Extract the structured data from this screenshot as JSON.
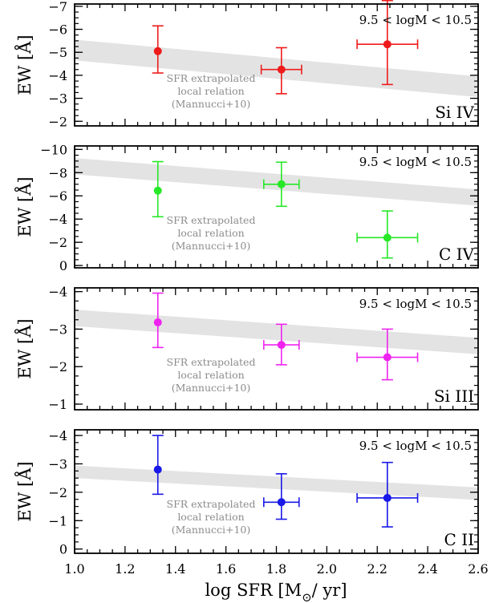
{
  "chart_data": {
    "type": "scatter",
    "xlabel": "log SFR [M",
    "xlabel_sub": "⊙",
    "xlabel_tail": "/ yr]",
    "xlim": [
      1.0,
      2.6
    ],
    "xticks": [
      1.0,
      1.2,
      1.4,
      1.6,
      1.8,
      2.0,
      2.2,
      2.4,
      2.6
    ],
    "x_tick_labels": [
      "1.0",
      "1.2",
      "1.4",
      "1.6",
      "1.8",
      "2.0",
      "2.2",
      "2.4",
      "2.6"
    ],
    "band_text": [
      "SFR extrapolated",
      "local relation",
      "(Mannucci+10)"
    ],
    "mass_label": "9.5 < logM < 10.5",
    "ylabel_prefix": "EW [",
    "ylabel_unit": "Å",
    "ylabel_suffix": "]",
    "grid": false,
    "colors": {
      "band": "#e3e3e3",
      "band_text": "#8c8c8c"
    },
    "panels": [
      {
        "ion": "Si IV",
        "color": "#ee1b1b",
        "ylim": [
          -1.8,
          -7.1
        ],
        "yticks": [
          -7,
          -6,
          -5,
          -4,
          -3,
          -2
        ],
        "y_tick_labels": [
          "−7",
          "−6",
          "−5",
          "−4",
          "−3",
          "−2"
        ],
        "band": {
          "x": [
            1.0,
            2.6
          ],
          "center": [
            -5.1,
            -3.5
          ],
          "halfwidth": 0.45
        },
        "points": [
          {
            "x": 1.33,
            "y": -5.05,
            "xerr": 0.0,
            "yerr_low": 0.95,
            "yerr_high": 1.1
          },
          {
            "x": 1.82,
            "y": -4.25,
            "xerr": 0.08,
            "yerr_low": 1.05,
            "yerr_high": 0.95
          },
          {
            "x": 2.24,
            "y": -5.35,
            "xerr": 0.12,
            "yerr_low": 1.75,
            "yerr_high": 1.9
          }
        ]
      },
      {
        "ion": "C IV",
        "color": "#27e827",
        "ylim": [
          0.2,
          -10.3
        ],
        "yticks": [
          -10,
          -8,
          -6,
          -4,
          -2,
          0
        ],
        "y_tick_labels": [
          "−10",
          "−8",
          "−6",
          "−4",
          "−2",
          "0"
        ],
        "band": {
          "x": [
            1.0,
            2.6
          ],
          "center": [
            -8.55,
            -5.85
          ],
          "halfwidth": 0.7
        },
        "points": [
          {
            "x": 1.33,
            "y": -6.45,
            "xerr": 0.0,
            "yerr_low": 2.25,
            "yerr_high": 2.5
          },
          {
            "x": 1.82,
            "y": -7.0,
            "xerr": 0.07,
            "yerr_low": 1.9,
            "yerr_high": 1.9
          },
          {
            "x": 2.24,
            "y": -2.4,
            "xerr": 0.12,
            "yerr_low": 1.75,
            "yerr_high": 2.3
          }
        ]
      },
      {
        "ion": "Si III",
        "color": "#ef23ef",
        "ylim": [
          -0.85,
          -4.1
        ],
        "yticks": [
          -4,
          -3,
          -2,
          -1
        ],
        "y_tick_labels": [
          "−4",
          "−3",
          "−2",
          "−1"
        ],
        "band": {
          "x": [
            1.0,
            2.6
          ],
          "center": [
            -3.3,
            -2.55
          ],
          "halfwidth": 0.22
        },
        "points": [
          {
            "x": 1.33,
            "y": -3.18,
            "xerr": 0.0,
            "yerr_low": 0.67,
            "yerr_high": 0.78
          },
          {
            "x": 1.82,
            "y": -2.58,
            "xerr": 0.07,
            "yerr_low": 0.53,
            "yerr_high": 0.55
          },
          {
            "x": 2.24,
            "y": -2.25,
            "xerr": 0.12,
            "yerr_low": 0.6,
            "yerr_high": 0.75
          }
        ]
      },
      {
        "ion": "C II",
        "color": "#1818e8",
        "ylim": [
          0.15,
          -4.2
        ],
        "yticks": [
          -4,
          -3,
          -2,
          -1,
          0
        ],
        "y_tick_labels": [
          "−4",
          "−3",
          "−2",
          "−1",
          "0"
        ],
        "band": {
          "x": [
            1.0,
            2.6
          ],
          "center": [
            -2.72,
            -1.95
          ],
          "halfwidth": 0.22
        },
        "points": [
          {
            "x": 1.33,
            "y": -2.8,
            "xerr": 0.0,
            "yerr_low": 0.87,
            "yerr_high": 1.2
          },
          {
            "x": 1.82,
            "y": -1.65,
            "xerr": 0.07,
            "yerr_low": 0.6,
            "yerr_high": 1.0
          },
          {
            "x": 2.24,
            "y": -1.8,
            "xerr": 0.12,
            "yerr_low": 1.02,
            "yerr_high": 1.25
          }
        ]
      }
    ]
  }
}
